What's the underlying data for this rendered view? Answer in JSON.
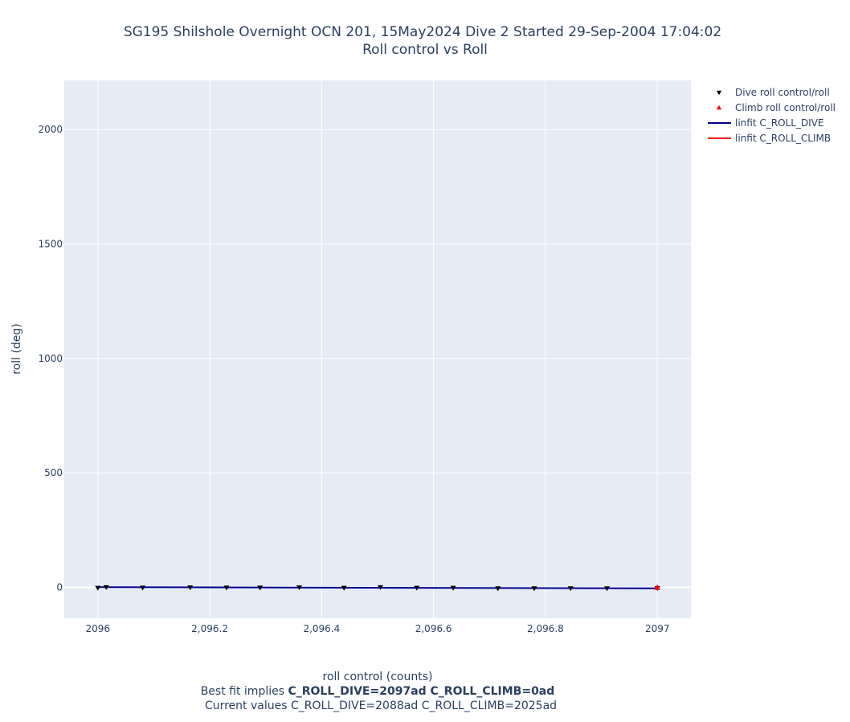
{
  "title_line1": "SG195 Shilshole Overnight OCN 201, 15May2024 Dive 2 Started 29-Sep-2004 17:04:02",
  "title_line2": "Roll control vs Roll",
  "xlabel": "roll control (counts)",
  "ylabel": "roll (deg)",
  "fit_note_prefix": "Best fit implies ",
  "fit_note_bold": "C_ROLL_DIVE=2097ad C_ROLL_CLIMB=0ad",
  "current_note": "Current values C_ROLL_DIVE=2088ad C_ROLL_CLIMB=2025ad",
  "colors": {
    "plot_bg": "#e5ecf6",
    "grid": "#ffffff",
    "dive": "#000000",
    "climb": "#ff0000",
    "dive_fit": "#00008b",
    "climb_fit": "#ff0000"
  },
  "chart_data": {
    "type": "scatter",
    "title": "SG195 Shilshole Overnight OCN 201, 15May2024 Dive 2 Started 29-Sep-2004 17:04:02 Roll control vs Roll",
    "xlabel": "roll control (counts)",
    "ylabel": "roll (deg)",
    "xlim": [
      2095.94,
      2097.06
    ],
    "ylim": [
      -135,
      2215
    ],
    "x_ticks": [
      2096,
      2096.2,
      2096.4,
      2096.6,
      2096.8,
      2097
    ],
    "x_tick_labels": [
      "2096",
      "2,096.2",
      "2,096.4",
      "2,096.6",
      "2,096.8",
      "2097"
    ],
    "y_ticks": [
      0,
      500,
      1000,
      1500,
      2000
    ],
    "y_tick_labels": [
      "0",
      "500",
      "1000",
      "1500",
      "2000"
    ],
    "grid": true,
    "legend_position": "top-right outside",
    "series": [
      {
        "name": "Dive roll control/roll",
        "kind": "markers",
        "marker": "triangle-down",
        "color": "#000000",
        "x": [
          2096.0,
          2096.015,
          2096.08,
          2096.165,
          2096.23,
          2096.29,
          2096.36,
          2096.44,
          2096.505,
          2096.57,
          2096.635,
          2096.715,
          2096.78,
          2096.845,
          2096.91,
          2097.0
        ],
        "y": [
          -2,
          1,
          -1,
          0,
          -1,
          -1,
          0,
          -2,
          1,
          -2,
          -2,
          -4,
          -4,
          -4,
          -4,
          -3
        ]
      },
      {
        "name": "Climb roll control/roll",
        "kind": "markers",
        "marker": "triangle-up",
        "color": "#ff0000",
        "x": [
          2097.0,
          2097.0
        ],
        "y": [
          1,
          -2
        ]
      },
      {
        "name": "linfit C_ROLL_DIVE",
        "kind": "line",
        "color": "#00008b",
        "x": [
          2096.0,
          2097.0
        ],
        "y": [
          1,
          -4
        ]
      },
      {
        "name": "linfit C_ROLL_CLIMB",
        "kind": "line",
        "color": "#ff0000",
        "x": [
          2097.0,
          2097.0
        ],
        "y": [
          0,
          0
        ]
      }
    ]
  }
}
